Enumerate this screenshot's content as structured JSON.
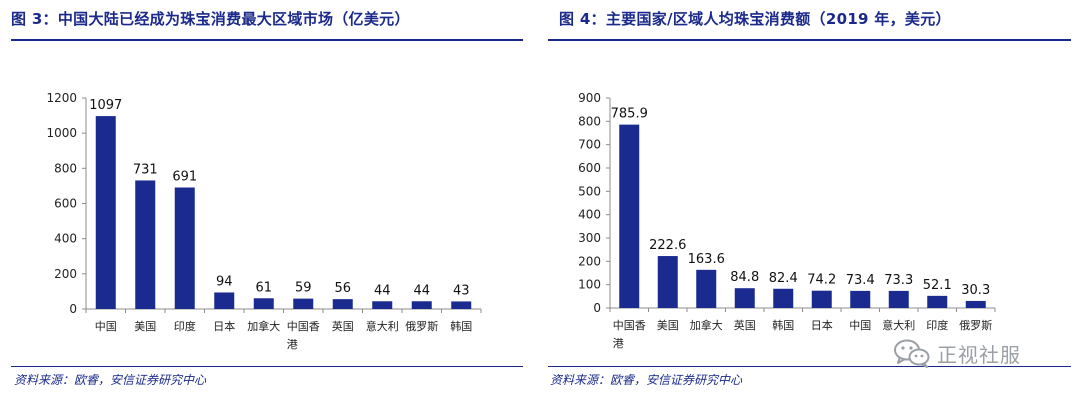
{
  "colors": {
    "bar": "#1a2a8e",
    "title": "#1b2a8a",
    "axis": "#8c8c8c",
    "text": "#222222"
  },
  "panels": [
    {
      "title": "图 3：中国大陆已经成为珠宝消费最大区域市场（亿美元）",
      "source": "资料来源：欧睿，安信证券研究中心"
    },
    {
      "title": "图 4：主要国家/区域人均珠宝消费额（2019 年，美元）",
      "source": "资料来源：欧睿，安信证券研究中心"
    }
  ],
  "watermark": {
    "text": "正视社服",
    "icon": "wechat-icon"
  },
  "chart_data": [
    {
      "type": "bar",
      "title": "图 3：中国大陆已经成为珠宝消费最大区域市场（亿美元）",
      "categories": [
        "中国",
        "美国",
        "印度",
        "日本",
        "加拿大",
        "中国香港",
        "英国",
        "意大利",
        "俄罗斯",
        "韩国"
      ],
      "category_lines": [
        [
          "中国"
        ],
        [
          "美国"
        ],
        [
          "印度"
        ],
        [
          "日本"
        ],
        [
          "加拿大"
        ],
        [
          "中国香",
          "港"
        ],
        [
          "英国"
        ],
        [
          "意大利"
        ],
        [
          "俄罗斯"
        ],
        [
          "韩国"
        ]
      ],
      "values": [
        1097,
        731,
        691,
        94,
        61,
        59,
        56,
        44,
        44,
        43
      ],
      "value_labels": [
        "1097",
        "731",
        "691",
        "94",
        "61",
        "59",
        "56",
        "44",
        "44",
        "43"
      ],
      "ylim": [
        0,
        1200
      ],
      "yticks": [
        0,
        200,
        400,
        600,
        800,
        1000,
        1200
      ],
      "grid": false
    },
    {
      "type": "bar",
      "title": "图 4：主要国家/区域人均珠宝消费额（2019 年，美元）",
      "categories": [
        "中国香港",
        "美国",
        "加拿大",
        "英国",
        "韩国",
        "日本",
        "中国",
        "意大利",
        "印度",
        "俄罗斯"
      ],
      "category_lines": [
        [
          "中国香",
          "港"
        ],
        [
          "美国"
        ],
        [
          "加拿大"
        ],
        [
          "英国"
        ],
        [
          "韩国"
        ],
        [
          "日本"
        ],
        [
          "中国"
        ],
        [
          "意大利"
        ],
        [
          "印度"
        ],
        [
          "俄罗斯"
        ]
      ],
      "values": [
        785.9,
        222.6,
        163.6,
        84.8,
        82.4,
        74.2,
        73.4,
        73.3,
        52.1,
        30.3
      ],
      "value_labels": [
        "785.9",
        "222.6",
        "163.6",
        "84.8",
        "82.4",
        "74.2",
        "73.4",
        "73.3",
        "52.1",
        "30.3"
      ],
      "ylim": [
        0,
        900
      ],
      "yticks": [
        0,
        100,
        200,
        300,
        400,
        500,
        600,
        700,
        800,
        900
      ],
      "grid": false
    }
  ]
}
